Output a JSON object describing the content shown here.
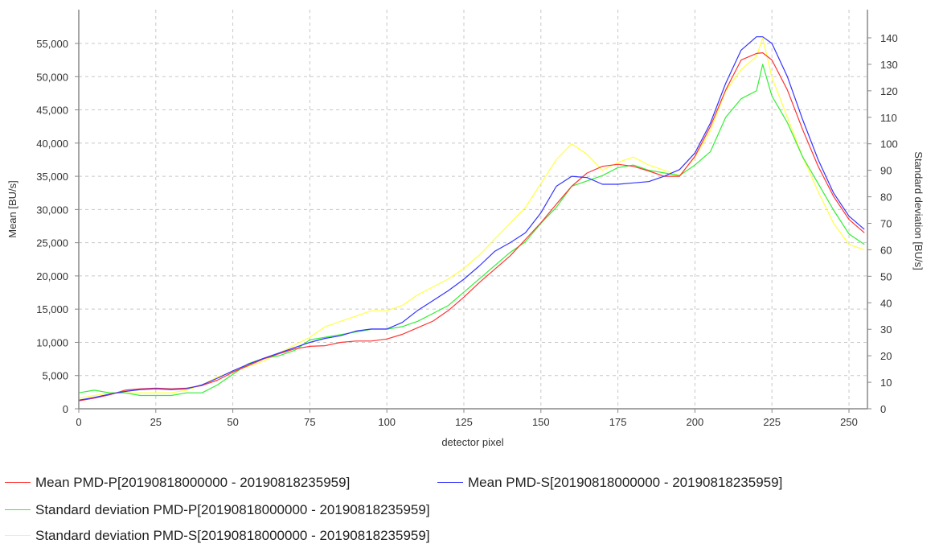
{
  "chart_data": {
    "type": "line",
    "xlabel": "detector pixel",
    "ylabel_left": "Mean [BU/s]",
    "ylabel_right": "Standard deviation [BU/s]",
    "xlim": [
      0,
      256
    ],
    "ylim_left": [
      0,
      55000
    ],
    "ylim_right": [
      0,
      140
    ],
    "x_ticks": [
      0,
      25,
      50,
      75,
      100,
      125,
      150,
      175,
      200,
      225,
      250
    ],
    "y_left_ticks": [
      "0",
      "5,000",
      "10,000",
      "15,000",
      "20,000",
      "25,000",
      "30,000",
      "35,000",
      "40,000",
      "45,000",
      "50,000",
      "55,000"
    ],
    "y_right_ticks": [
      "0",
      "10",
      "20",
      "30",
      "40",
      "50",
      "60",
      "70",
      "80",
      "90",
      "100",
      "110",
      "120",
      "130",
      "140"
    ],
    "grid": true,
    "legend_position": "bottom",
    "series": [
      {
        "name": "Mean PMD-P[20190818000000 - 20190818235959]",
        "axis": "left",
        "color": "#ff3333",
        "x": [
          0,
          5,
          10,
          15,
          20,
          25,
          30,
          35,
          40,
          45,
          50,
          55,
          60,
          65,
          70,
          75,
          80,
          85,
          90,
          95,
          100,
          105,
          110,
          115,
          120,
          125,
          130,
          135,
          140,
          145,
          150,
          155,
          160,
          165,
          170,
          175,
          180,
          185,
          190,
          195,
          200,
          205,
          210,
          215,
          220,
          222,
          225,
          230,
          235,
          240,
          245,
          250,
          255
        ],
        "values": [
          1200,
          1600,
          2100,
          2800,
          3000,
          3100,
          3000,
          3100,
          3500,
          4300,
          5500,
          6500,
          7500,
          8300,
          9000,
          9400,
          9500,
          10000,
          10200,
          10200,
          10500,
          11200,
          12200,
          13200,
          14800,
          16800,
          19000,
          21000,
          23000,
          25500,
          28000,
          30800,
          33500,
          35500,
          36500,
          36800,
          36500,
          35800,
          35000,
          35000,
          38000,
          42500,
          48000,
          52500,
          53500,
          53600,
          52500,
          48000,
          42000,
          36500,
          32000,
          28500,
          26500
        ]
      },
      {
        "name": "Mean PMD-S[20190818000000 - 20190818235959]",
        "axis": "left",
        "color": "#3333ff",
        "x": [
          0,
          5,
          10,
          15,
          20,
          25,
          30,
          35,
          40,
          45,
          50,
          55,
          60,
          65,
          70,
          75,
          80,
          85,
          90,
          95,
          100,
          105,
          110,
          115,
          120,
          125,
          130,
          135,
          140,
          145,
          150,
          155,
          160,
          165,
          170,
          175,
          180,
          185,
          190,
          195,
          200,
          205,
          210,
          215,
          220,
          222,
          225,
          230,
          235,
          240,
          245,
          250,
          255
        ],
        "values": [
          1300,
          1700,
          2200,
          2600,
          2900,
          3000,
          2900,
          3000,
          3600,
          4600,
          5700,
          6700,
          7600,
          8400,
          9200,
          10000,
          10600,
          11000,
          11700,
          12000,
          12000,
          13000,
          14800,
          16300,
          17800,
          19500,
          21500,
          23700,
          25000,
          26500,
          29500,
          33500,
          35000,
          34800,
          33800,
          33800,
          34000,
          34200,
          35000,
          36000,
          38500,
          43000,
          49000,
          54000,
          56000,
          56000,
          55000,
          50000,
          43500,
          37500,
          32500,
          29000,
          27000
        ]
      },
      {
        "name": "Standard deviation PMD-P[20190818000000 - 20190818235959]",
        "axis": "right",
        "color": "#33ee33",
        "x": [
          0,
          5,
          10,
          15,
          20,
          25,
          30,
          35,
          40,
          45,
          50,
          55,
          60,
          65,
          70,
          75,
          80,
          85,
          90,
          95,
          100,
          105,
          110,
          115,
          120,
          125,
          130,
          135,
          140,
          145,
          150,
          155,
          160,
          165,
          170,
          175,
          180,
          185,
          190,
          195,
          200,
          205,
          210,
          215,
          220,
          222,
          225,
          230,
          235,
          240,
          245,
          250,
          255
        ],
        "values": [
          6,
          7,
          6,
          6,
          5,
          5,
          5,
          6,
          6,
          9,
          13,
          17,
          19,
          20,
          22,
          26,
          27,
          28,
          29,
          30,
          30,
          31,
          33,
          36,
          39,
          44,
          49,
          54,
          59,
          63,
          70,
          76,
          84,
          86,
          88,
          91,
          92,
          90,
          89,
          88,
          92,
          97,
          110,
          117,
          120,
          130,
          118,
          108,
          95,
          85,
          75,
          66,
          62
        ]
      },
      {
        "name": "Standard deviation PMD-S[20190818000000 - 20190818235959]",
        "axis": "right",
        "color": "#ffff44",
        "x": [
          0,
          5,
          10,
          15,
          20,
          25,
          30,
          35,
          40,
          45,
          50,
          55,
          60,
          65,
          70,
          75,
          80,
          85,
          90,
          95,
          100,
          105,
          110,
          115,
          120,
          125,
          130,
          135,
          140,
          145,
          150,
          155,
          160,
          165,
          170,
          175,
          180,
          185,
          190,
          195,
          200,
          205,
          210,
          215,
          220,
          222,
          225,
          230,
          235,
          240,
          245,
          250,
          255
        ],
        "values": [
          4,
          5,
          6,
          6,
          6,
          6,
          6,
          7,
          9,
          12,
          14,
          16,
          18,
          21,
          24,
          27,
          31,
          33,
          35,
          37,
          37,
          39,
          43,
          46,
          49,
          53,
          58,
          64,
          70,
          76,
          85,
          94,
          100,
          96,
          90,
          93,
          95,
          92,
          90,
          88,
          95,
          105,
          120,
          128,
          133,
          140,
          125,
          110,
          95,
          82,
          70,
          62,
          60
        ]
      }
    ]
  }
}
